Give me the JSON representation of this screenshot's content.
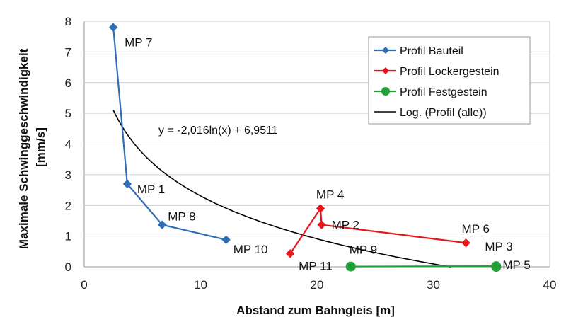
{
  "chart_data": {
    "type": "scatter",
    "xlabel": "Abstand zum Bahngleis [m]",
    "ylabel": "Maximale Schwinggeschwindigkeit [mm/s]",
    "xlim": [
      0,
      40
    ],
    "ylim": [
      0,
      8
    ],
    "xticks": [
      0,
      10,
      20,
      30,
      40
    ],
    "yticks": [
      0,
      1,
      2,
      3,
      4,
      5,
      6,
      7,
      8
    ],
    "grid": "horizontal",
    "legend_position": "top-right",
    "series": [
      {
        "name": "Profil Bauteil",
        "color": "#2f6db5",
        "marker": "diamond",
        "points": [
          {
            "x": 2.5,
            "y": 7.8,
            "label": "MP 7"
          },
          {
            "x": 3.7,
            "y": 2.7,
            "label": "MP 1"
          },
          {
            "x": 6.7,
            "y": 1.37,
            "label": "MP 8"
          },
          {
            "x": 12.2,
            "y": 0.88,
            "label": "MP 10"
          }
        ]
      },
      {
        "name": "Profil Lockergestein",
        "color": "#e8161b",
        "marker": "diamond",
        "points": [
          {
            "x": 17.7,
            "y": 0.43,
            "label": "MP 11"
          },
          {
            "x": 20.3,
            "y": 1.9,
            "label": "MP 4"
          },
          {
            "x": 20.4,
            "y": 1.37,
            "label": "MP 2"
          },
          {
            "x": 32.8,
            "y": 0.78,
            "label": "MP 6"
          }
        ]
      },
      {
        "name": "Profil Festgestein",
        "color": "#21a038",
        "marker": "circle",
        "points": [
          {
            "x": 22.9,
            "y": 0.01,
            "label": "MP 9"
          },
          {
            "x": 35.4,
            "y": 0.02,
            "label": "MP 3"
          },
          {
            "x": 35.4,
            "y": 0.0,
            "label": "MP 5"
          }
        ]
      }
    ],
    "trendline": {
      "name": "Log. (Profil (alle))",
      "color": "#000000",
      "type": "logarithmic",
      "a": -2.016,
      "b": 6.9511,
      "x_range": [
        2.5,
        31.5
      ],
      "equation": "y = -2,016ln(x) + 6,9511"
    }
  }
}
